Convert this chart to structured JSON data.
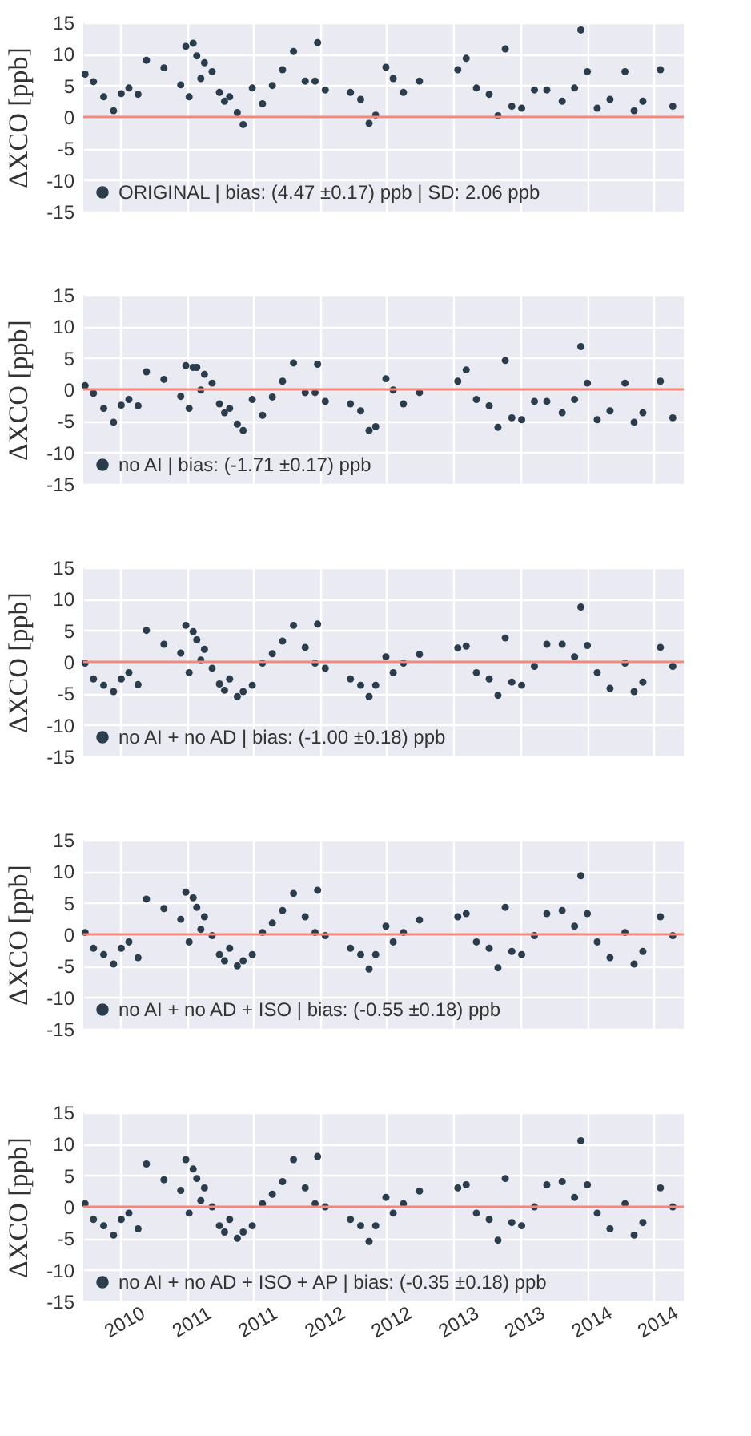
{
  "chart_data": [
    {
      "type": "scatter",
      "ylabel": "ΔXCO [ppb]",
      "xlim": [
        "2010-03-23",
        "2014-09-23"
      ],
      "ylim": [
        -15,
        15
      ],
      "yticks": [
        -15,
        -10,
        -5,
        0,
        5,
        10,
        15
      ],
      "xticks": [
        {
          "value": "2010-07-01",
          "label": null
        },
        {
          "value": "2011-01-01",
          "label": null
        },
        {
          "value": "2011-07-01",
          "label": null
        },
        {
          "value": "2012-01-01",
          "label": null
        },
        {
          "value": "2012-07-01",
          "label": null
        },
        {
          "value": "2013-01-01",
          "label": null
        },
        {
          "value": "2013-07-01",
          "label": null
        },
        {
          "value": "2014-01-01",
          "label": null
        },
        {
          "value": "2014-07-01",
          "label": null
        }
      ],
      "tick_labels": "y",
      "grid": true,
      "legend": "bottom left",
      "marker": "circle",
      "ref_lines": [
        {
          "axis": "y",
          "value": 0,
          "color": "#f4867a"
        }
      ],
      "x": [
        "2010-03-28",
        "2010-04-20",
        "2010-05-18",
        "2010-06-14",
        "2010-07-05",
        "2010-07-26",
        "2010-08-20",
        "2010-09-12",
        "2010-10-30",
        "2010-12-15",
        "2010-12-29",
        "2011-01-07",
        "2011-01-18",
        "2011-01-28",
        "2011-02-08",
        "2011-02-18",
        "2011-03-11",
        "2011-03-31",
        "2011-04-14",
        "2011-04-28",
        "2011-05-19",
        "2011-06-04",
        "2011-06-29",
        "2011-07-27",
        "2011-08-23",
        "2011-09-20",
        "2011-10-20",
        "2011-11-21",
        "2011-12-18",
        "2011-12-25",
        "2012-01-15",
        "2012-03-24",
        "2012-04-21",
        "2012-05-14",
        "2012-06-01",
        "2012-06-29",
        "2012-07-19",
        "2012-08-16",
        "2012-09-29",
        "2013-01-12",
        "2013-02-04",
        "2013-03-04",
        "2013-04-08",
        "2013-05-02",
        "2013-05-22",
        "2013-06-09",
        "2013-07-06",
        "2013-08-10",
        "2013-09-13",
        "2013-10-25",
        "2013-11-28",
        "2013-12-15",
        "2014-01-02",
        "2014-01-29",
        "2014-03-05",
        "2014-04-15",
        "2014-05-10",
        "2014-06-03",
        "2014-07-21",
        "2014-08-24"
      ],
      "series": [
        {
          "name": "ORIGINAL | bias: (4.47 ±0.17) ppb | SD: 2.06 ppb",
          "color": "#2b3d4c",
          "values": [
            6.8,
            5.6,
            3.2,
            1.0,
            3.7,
            4.6,
            3.6,
            9.0,
            7.8,
            5.1,
            11.2,
            3.2,
            11.7,
            9.7,
            6.1,
            8.6,
            7.2,
            3.9,
            2.5,
            3.2,
            0.7,
            -1.2,
            4.6,
            2.1,
            5.0,
            7.5,
            10.4,
            5.7,
            5.7,
            11.8,
            4.3,
            3.9,
            2.8,
            -1.0,
            0.3,
            7.9,
            6.1,
            3.9,
            5.7,
            7.5,
            9.3,
            4.6,
            3.6,
            0.2,
            10.8,
            1.7,
            1.4,
            4.3,
            4.3,
            2.5,
            4.6,
            13.8,
            7.2,
            1.4,
            2.8,
            7.2,
            1.0,
            2.5,
            7.5,
            1.7
          ]
        }
      ]
    },
    {
      "type": "scatter",
      "ylabel": "ΔXCO [ppb]",
      "xlim": [
        "2010-03-23",
        "2014-09-23"
      ],
      "ylim": [
        -15,
        15
      ],
      "yticks": [
        -15,
        -10,
        -5,
        0,
        5,
        10,
        15
      ],
      "xticks": [
        {
          "value": "2010-07-01",
          "label": null
        },
        {
          "value": "2011-01-01",
          "label": null
        },
        {
          "value": "2011-07-01",
          "label": null
        },
        {
          "value": "2012-01-01",
          "label": null
        },
        {
          "value": "2012-07-01",
          "label": null
        },
        {
          "value": "2013-01-01",
          "label": null
        },
        {
          "value": "2013-07-01",
          "label": null
        },
        {
          "value": "2014-01-01",
          "label": null
        },
        {
          "value": "2014-07-01",
          "label": null
        }
      ],
      "tick_labels": "y",
      "grid": true,
      "legend": "bottom left",
      "marker": "circle",
      "ref_lines": [
        {
          "axis": "y",
          "value": 0,
          "color": "#f4867a"
        }
      ],
      "x": [
        "2010-03-28",
        "2010-04-20",
        "2010-05-18",
        "2010-06-14",
        "2010-07-05",
        "2010-07-26",
        "2010-08-20",
        "2010-09-12",
        "2010-10-30",
        "2010-12-15",
        "2010-12-29",
        "2011-01-07",
        "2011-01-18",
        "2011-01-28",
        "2011-02-08",
        "2011-02-18",
        "2011-03-11",
        "2011-03-31",
        "2011-04-14",
        "2011-04-28",
        "2011-05-19",
        "2011-06-04",
        "2011-06-29",
        "2011-07-27",
        "2011-08-23",
        "2011-09-20",
        "2011-10-20",
        "2011-11-21",
        "2011-12-18",
        "2011-12-25",
        "2012-01-15",
        "2012-03-24",
        "2012-04-21",
        "2012-05-14",
        "2012-06-01",
        "2012-06-29",
        "2012-07-19",
        "2012-08-16",
        "2012-09-29",
        "2013-01-12",
        "2013-02-04",
        "2013-03-04",
        "2013-04-08",
        "2013-05-02",
        "2013-05-22",
        "2013-06-09",
        "2013-07-06",
        "2013-08-10",
        "2013-09-13",
        "2013-10-25",
        "2013-11-28",
        "2013-12-15",
        "2014-01-02",
        "2014-01-29",
        "2014-03-05",
        "2014-04-15",
        "2014-05-10",
        "2014-06-03",
        "2014-07-21",
        "2014-08-24"
      ],
      "series": [
        {
          "name": "no AI | bias: (-1.71 ±0.17) ppb",
          "color": "#2b3d4c",
          "values": [
            0.6,
            -0.6,
            -3.0,
            -5.2,
            -2.5,
            -1.6,
            -2.6,
            2.8,
            1.6,
            -1.1,
            3.8,
            -3.0,
            3.5,
            3.5,
            -0.1,
            2.4,
            1.0,
            -2.3,
            -3.7,
            -3.0,
            -5.5,
            -6.5,
            -1.6,
            -4.1,
            -1.2,
            1.3,
            4.2,
            -0.5,
            -0.5,
            4.0,
            -1.9,
            -2.3,
            -3.4,
            -6.5,
            -5.9,
            1.7,
            -0.1,
            -2.3,
            -0.5,
            1.3,
            3.1,
            -1.6,
            -2.6,
            -6.0,
            4.6,
            -4.5,
            -4.8,
            -1.9,
            -1.9,
            -3.7,
            -1.6,
            6.8,
            1.0,
            -4.8,
            -3.4,
            1.0,
            -5.2,
            -3.7,
            1.3,
            -4.5
          ]
        }
      ]
    },
    {
      "type": "scatter",
      "ylabel": "ΔXCO [ppb]",
      "xlim": [
        "2010-03-23",
        "2014-09-23"
      ],
      "ylim": [
        -15,
        15
      ],
      "yticks": [
        -15,
        -10,
        -5,
        0,
        5,
        10,
        15
      ],
      "xticks": [
        {
          "value": "2010-07-01",
          "label": null
        },
        {
          "value": "2011-01-01",
          "label": null
        },
        {
          "value": "2011-07-01",
          "label": null
        },
        {
          "value": "2012-01-01",
          "label": null
        },
        {
          "value": "2012-07-01",
          "label": null
        },
        {
          "value": "2013-01-01",
          "label": null
        },
        {
          "value": "2013-07-01",
          "label": null
        },
        {
          "value": "2014-01-01",
          "label": null
        },
        {
          "value": "2014-07-01",
          "label": null
        }
      ],
      "tick_labels": "y",
      "grid": true,
      "legend": "bottom left",
      "marker": "circle",
      "ref_lines": [
        {
          "axis": "y",
          "value": 0,
          "color": "#f4867a"
        }
      ],
      "x": [
        "2010-03-28",
        "2010-04-20",
        "2010-05-18",
        "2010-06-14",
        "2010-07-05",
        "2010-07-26",
        "2010-08-20",
        "2010-09-12",
        "2010-10-30",
        "2010-12-15",
        "2010-12-29",
        "2011-01-07",
        "2011-01-18",
        "2011-01-28",
        "2011-02-08",
        "2011-02-18",
        "2011-03-11",
        "2011-03-31",
        "2011-04-14",
        "2011-04-28",
        "2011-05-19",
        "2011-06-04",
        "2011-06-29",
        "2011-07-27",
        "2011-08-23",
        "2011-09-20",
        "2011-10-20",
        "2011-11-21",
        "2011-12-18",
        "2011-12-25",
        "2012-01-15",
        "2012-03-24",
        "2012-04-21",
        "2012-05-14",
        "2012-06-01",
        "2012-06-29",
        "2012-07-19",
        "2012-08-16",
        "2012-09-29",
        "2013-01-12",
        "2013-02-04",
        "2013-03-04",
        "2013-04-08",
        "2013-05-02",
        "2013-05-22",
        "2013-06-09",
        "2013-07-06",
        "2013-08-10",
        "2013-09-13",
        "2013-10-25",
        "2013-11-28",
        "2013-12-15",
        "2014-01-02",
        "2014-01-29",
        "2014-03-05",
        "2014-04-15",
        "2014-05-10",
        "2014-06-03",
        "2014-07-21",
        "2014-08-24"
      ],
      "series": [
        {
          "name": "no AI + no AD | bias: (-1.00 ±0.18) ppb",
          "color": "#2b3d4c",
          "values": [
            -0.2,
            -2.7,
            -3.7,
            -4.7,
            -2.7,
            -1.7,
            -3.6,
            5.0,
            2.8,
            1.4,
            5.8,
            -1.7,
            4.8,
            3.5,
            0.3,
            2.0,
            -1.0,
            -3.5,
            -4.5,
            -2.7,
            -5.5,
            -4.7,
            -3.7,
            -0.2,
            1.3,
            3.3,
            5.8,
            2.3,
            -0.2,
            6.0,
            -1.0,
            -2.7,
            -3.7,
            -5.5,
            -3.7,
            0.8,
            -1.7,
            -0.2,
            1.2,
            2.2,
            2.5,
            -1.7,
            -2.7,
            -5.3,
            3.8,
            -3.2,
            -3.7,
            -0.7,
            2.8,
            2.8,
            0.8,
            8.7,
            2.6,
            -1.7,
            -4.2,
            -0.2,
            -4.7,
            -3.2,
            2.3,
            -0.7
          ]
        }
      ]
    },
    {
      "type": "scatter",
      "ylabel": "ΔXCO [ppb]",
      "xlim": [
        "2010-03-23",
        "2014-09-23"
      ],
      "ylim": [
        -15,
        15
      ],
      "yticks": [
        -15,
        -10,
        -5,
        0,
        5,
        10,
        15
      ],
      "xticks": [
        {
          "value": "2010-07-01",
          "label": null
        },
        {
          "value": "2011-01-01",
          "label": null
        },
        {
          "value": "2011-07-01",
          "label": null
        },
        {
          "value": "2012-01-01",
          "label": null
        },
        {
          "value": "2012-07-01",
          "label": null
        },
        {
          "value": "2013-01-01",
          "label": null
        },
        {
          "value": "2013-07-01",
          "label": null
        },
        {
          "value": "2014-01-01",
          "label": null
        },
        {
          "value": "2014-07-01",
          "label": null
        }
      ],
      "tick_labels": "y",
      "grid": true,
      "legend": "bottom left",
      "marker": "circle",
      "ref_lines": [
        {
          "axis": "y",
          "value": 0,
          "color": "#f4867a"
        }
      ],
      "x": [
        "2010-03-28",
        "2010-04-20",
        "2010-05-18",
        "2010-06-14",
        "2010-07-05",
        "2010-07-26",
        "2010-08-20",
        "2010-09-12",
        "2010-10-30",
        "2010-12-15",
        "2010-12-29",
        "2011-01-07",
        "2011-01-18",
        "2011-01-28",
        "2011-02-08",
        "2011-02-18",
        "2011-03-11",
        "2011-03-31",
        "2011-04-14",
        "2011-04-28",
        "2011-05-19",
        "2011-06-04",
        "2011-06-29",
        "2011-07-27",
        "2011-08-23",
        "2011-09-20",
        "2011-10-20",
        "2011-11-21",
        "2011-12-18",
        "2011-12-25",
        "2012-01-15",
        "2012-03-24",
        "2012-04-21",
        "2012-05-14",
        "2012-06-01",
        "2012-06-29",
        "2012-07-19",
        "2012-08-16",
        "2012-09-29",
        "2013-01-12",
        "2013-02-04",
        "2013-03-04",
        "2013-04-08",
        "2013-05-02",
        "2013-05-22",
        "2013-06-09",
        "2013-07-06",
        "2013-08-10",
        "2013-09-13",
        "2013-10-25",
        "2013-11-28",
        "2013-12-15",
        "2014-01-02",
        "2014-01-29",
        "2014-03-05",
        "2014-04-15",
        "2014-05-10",
        "2014-06-03",
        "2014-07-21",
        "2014-08-24"
      ],
      "series": [
        {
          "name": "no AI + no AD + ISO | bias: (-0.55 ±0.18) ppb",
          "color": "#2b3d4c",
          "values": [
            0.3,
            -2.2,
            -3.2,
            -4.7,
            -2.2,
            -1.2,
            -3.7,
            5.6,
            4.1,
            2.4,
            6.7,
            -1.2,
            5.8,
            4.3,
            0.8,
            2.8,
            -0.2,
            -3.2,
            -4.2,
            -2.2,
            -5.0,
            -4.2,
            -3.2,
            0.3,
            1.8,
            3.8,
            6.5,
            2.8,
            0.3,
            7.0,
            -0.2,
            -2.2,
            -3.2,
            -5.5,
            -3.2,
            1.3,
            -1.2,
            0.3,
            2.3,
            2.8,
            3.3,
            -1.2,
            -2.2,
            -5.3,
            4.3,
            -2.7,
            -3.2,
            -0.2,
            3.3,
            3.8,
            1.3,
            9.3,
            3.3,
            -1.2,
            -3.7,
            0.3,
            -4.7,
            -2.7,
            2.8,
            -0.2
          ]
        }
      ]
    },
    {
      "type": "scatter",
      "ylabel": "ΔXCO [ppb]",
      "xlim": [
        "2010-03-23",
        "2014-09-23"
      ],
      "ylim": [
        -15,
        15
      ],
      "yticks": [
        -15,
        -10,
        -5,
        0,
        5,
        10,
        15
      ],
      "xticks": [
        {
          "value": "2010-07-01",
          "label": "2010"
        },
        {
          "value": "2011-01-01",
          "label": "2011"
        },
        {
          "value": "2011-07-01",
          "label": "2011"
        },
        {
          "value": "2012-01-01",
          "label": "2012"
        },
        {
          "value": "2012-07-01",
          "label": "2012"
        },
        {
          "value": "2013-01-01",
          "label": "2013"
        },
        {
          "value": "2013-07-01",
          "label": "2013"
        },
        {
          "value": "2014-01-01",
          "label": "2014"
        },
        {
          "value": "2014-07-01",
          "label": "2014"
        }
      ],
      "grid": true,
      "legend": "bottom left",
      "marker": "circle",
      "ref_lines": [
        {
          "axis": "y",
          "value": 0,
          "color": "#f4867a"
        }
      ],
      "x": [
        "2010-03-28",
        "2010-04-20",
        "2010-05-18",
        "2010-06-14",
        "2010-07-05",
        "2010-07-26",
        "2010-08-20",
        "2010-09-12",
        "2010-10-30",
        "2010-12-15",
        "2010-12-29",
        "2011-01-07",
        "2011-01-18",
        "2011-01-28",
        "2011-02-08",
        "2011-02-18",
        "2011-03-11",
        "2011-03-31",
        "2011-04-14",
        "2011-04-28",
        "2011-05-19",
        "2011-06-04",
        "2011-06-29",
        "2011-07-27",
        "2011-08-23",
        "2011-09-20",
        "2011-10-20",
        "2011-11-21",
        "2011-12-18",
        "2011-12-25",
        "2012-01-15",
        "2012-03-24",
        "2012-04-21",
        "2012-05-14",
        "2012-06-01",
        "2012-06-29",
        "2012-07-19",
        "2012-08-16",
        "2012-09-29",
        "2013-01-12",
        "2013-02-04",
        "2013-03-04",
        "2013-04-08",
        "2013-05-02",
        "2013-05-22",
        "2013-06-09",
        "2013-07-06",
        "2013-08-10",
        "2013-09-13",
        "2013-10-25",
        "2013-11-28",
        "2013-12-15",
        "2014-01-02",
        "2014-01-29",
        "2014-03-05",
        "2014-04-15",
        "2014-05-10",
        "2014-06-03",
        "2014-07-21",
        "2014-08-24"
      ],
      "series": [
        {
          "name": "no AI + no AD + ISO + AP | bias: (-0.35 ±0.18) ppb",
          "color": "#2b3d4c",
          "values": [
            0.5,
            -2.0,
            -3.0,
            -4.5,
            -2.0,
            -1.0,
            -3.5,
            6.8,
            4.3,
            2.6,
            7.5,
            -1.0,
            6.0,
            4.5,
            1.0,
            3.0,
            0.0,
            -3.0,
            -4.0,
            -2.0,
            -5.0,
            -4.0,
            -3.0,
            0.5,
            2.0,
            4.0,
            7.5,
            3.0,
            0.5,
            8.0,
            0.0,
            -2.0,
            -3.0,
            -5.5,
            -3.0,
            1.5,
            -1.0,
            0.5,
            2.5,
            3.0,
            3.5,
            -1.0,
            -2.0,
            -5.3,
            4.5,
            -2.5,
            -3.0,
            0.0,
            3.5,
            4.0,
            1.5,
            10.5,
            3.5,
            -1.0,
            -3.5,
            0.5,
            -4.5,
            -2.5,
            3.0,
            0.0
          ]
        }
      ]
    }
  ]
}
